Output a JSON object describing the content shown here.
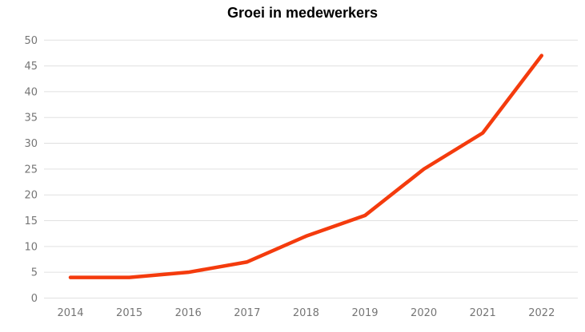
{
  "chart_data": {
    "type": "line",
    "title": "Groei in medewerkers",
    "categories": [
      "2014",
      "2015",
      "2016",
      "2017",
      "2018",
      "2019",
      "2020",
      "2021",
      "2022"
    ],
    "values": [
      4,
      4,
      5,
      7,
      12,
      16,
      25,
      32,
      47
    ],
    "xlabel": "",
    "ylabel": "",
    "ylim": [
      0,
      50
    ],
    "ytick_step": 5,
    "yticks": [
      0,
      5,
      10,
      15,
      20,
      25,
      30,
      35,
      40,
      45,
      50
    ],
    "grid": "horizontal",
    "legend_position": "none",
    "colors": {
      "line": "#f43b0d",
      "gridline": "#e0e0e0",
      "tick_label": "#757575",
      "title": "#000000",
      "background": "#ffffff"
    }
  }
}
